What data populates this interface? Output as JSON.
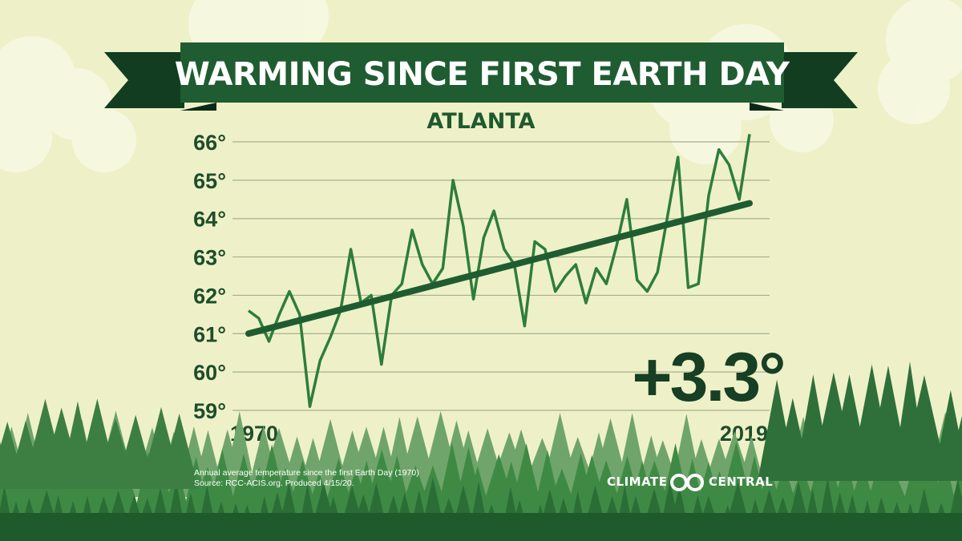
{
  "title": "WARMING SINCE FIRST EARTH DAY",
  "subtitle": "ATLANTA",
  "callout": "+3.3°",
  "footnote": {
    "line1": "Annual average temperature since the first Earth Day (1970)",
    "line2": "Source: RCC-ACIS.org. Produced 4/15/20."
  },
  "brand": {
    "left": "CLIMATE",
    "right": "CENTRAL"
  },
  "colors": {
    "banner": "#1f5c31",
    "banner_dark": "#123d20",
    "line": "#2e7d3c",
    "trend": "#1f5c31",
    "background": "#eef1c8"
  },
  "chart_data": {
    "type": "line",
    "title": "WARMING SINCE FIRST EARTH DAY",
    "subtitle": "ATLANTA",
    "xlabel": "",
    "ylabel": "",
    "xlim": [
      1970,
      2019
    ],
    "ylim": [
      59,
      66
    ],
    "grid": true,
    "y_ticks": [
      59,
      60,
      61,
      62,
      63,
      64,
      65,
      66
    ],
    "y_tick_labels": [
      "59°",
      "60°",
      "61°",
      "62°",
      "63°",
      "64°",
      "65°",
      "66°"
    ],
    "x_tick_labels": [
      "1970",
      "2019"
    ],
    "series": [
      {
        "kind": "annual",
        "x": [
          1970,
          1971,
          1972,
          1973,
          1974,
          1975,
          1976,
          1977,
          1978,
          1979,
          1980,
          1981,
          1982,
          1983,
          1984,
          1985,
          1986,
          1987,
          1988,
          1989,
          1990,
          1991,
          1992,
          1993,
          1994,
          1995,
          1996,
          1997,
          1998,
          1999,
          2000,
          2001,
          2002,
          2003,
          2004,
          2005,
          2006,
          2007,
          2008,
          2009,
          2010,
          2011,
          2012,
          2013,
          2014,
          2015,
          2016,
          2017,
          2018,
          2019
        ],
        "values": [
          61.6,
          61.4,
          60.8,
          61.5,
          62.1,
          61.5,
          59.1,
          60.3,
          60.9,
          61.6,
          63.2,
          61.8,
          62.0,
          60.2,
          62.0,
          62.3,
          63.7,
          62.8,
          62.3,
          62.7,
          65.0,
          63.8,
          61.9,
          63.5,
          64.2,
          63.2,
          62.8,
          61.2,
          63.4,
          63.2,
          62.1,
          62.5,
          62.8,
          61.8,
          62.7,
          62.3,
          63.3,
          64.5,
          62.4,
          62.1,
          62.6,
          64.1,
          65.6,
          62.2,
          62.3,
          64.6,
          65.8,
          65.4,
          64.5,
          66.2
        ]
      },
      {
        "kind": "trend",
        "x": [
          1970,
          2019
        ],
        "values": [
          61.0,
          64.4
        ]
      }
    ]
  }
}
